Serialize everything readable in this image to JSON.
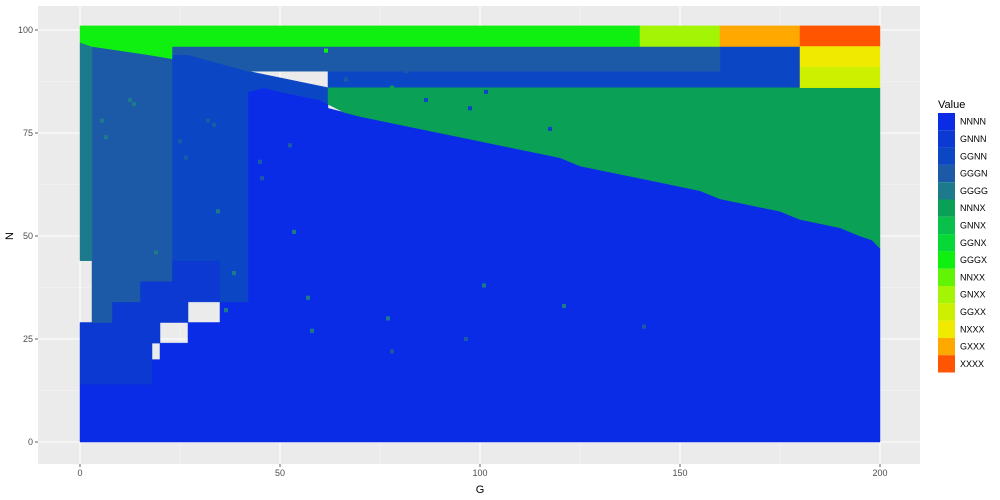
{
  "chart_data": {
    "type": "heatmap",
    "title": "",
    "xlabel": "G",
    "ylabel": "N",
    "xlim": [
      0,
      200
    ],
    "ylim": [
      0,
      100
    ],
    "x_ticks": [
      0,
      50,
      100,
      150,
      200
    ],
    "y_ticks": [
      0,
      25,
      50,
      75,
      100
    ],
    "grid": true,
    "legend_position": "right",
    "legend": {
      "title": "Value",
      "categories": [
        "NNNN",
        "GNNN",
        "GGNN",
        "GGGN",
        "GGGG",
        "NNNX",
        "GNNX",
        "GGNX",
        "GGGX",
        "NNXX",
        "GNXX",
        "GGXX",
        "NXXX",
        "GXXX",
        "XXXX"
      ],
      "colors": [
        "#0a2ce6",
        "#0b39d1",
        "#0b46c4",
        "#1c5aa8",
        "#1c7a8c",
        "#0aa055",
        "#08c04a",
        "#06d838",
        "#10f010",
        "#62f406",
        "#a4f405",
        "#ccf000",
        "#f0ea00",
        "#ffa800",
        "#ff5500"
      ]
    },
    "regions": [
      {
        "value": "NNNN",
        "polygon": [
          [
            0,
            0
          ],
          [
            0,
            14
          ],
          [
            18,
            14
          ],
          [
            18,
            20
          ],
          [
            20,
            20
          ],
          [
            20,
            24
          ],
          [
            27,
            24
          ],
          [
            27,
            29
          ],
          [
            35,
            29
          ],
          [
            35,
            34
          ],
          [
            42,
            34
          ],
          [
            42,
            85
          ],
          [
            46,
            86
          ],
          [
            50,
            85
          ],
          [
            55,
            84
          ],
          [
            60,
            83
          ],
          [
            62,
            82
          ],
          [
            62,
            81
          ],
          [
            66,
            80
          ],
          [
            70,
            79
          ],
          [
            75,
            78
          ],
          [
            80,
            77
          ],
          [
            85,
            76
          ],
          [
            90,
            75
          ],
          [
            95,
            74
          ],
          [
            100,
            73
          ],
          [
            105,
            72
          ],
          [
            110,
            71
          ],
          [
            115,
            70
          ],
          [
            120,
            69
          ],
          [
            125,
            67
          ],
          [
            130,
            66
          ],
          [
            135,
            65
          ],
          [
            140,
            64
          ],
          [
            145,
            63
          ],
          [
            150,
            62
          ],
          [
            155,
            61
          ],
          [
            160,
            59
          ],
          [
            165,
            58
          ],
          [
            170,
            57
          ],
          [
            175,
            56
          ],
          [
            180,
            54
          ],
          [
            185,
            53
          ],
          [
            190,
            52
          ],
          [
            195,
            50
          ],
          [
            198,
            49
          ],
          [
            200,
            47
          ],
          [
            200,
            0
          ]
        ]
      },
      {
        "value": "GNNN",
        "polygon": [
          [
            0,
            14
          ],
          [
            0,
            29
          ],
          [
            8,
            29
          ],
          [
            8,
            34
          ],
          [
            15,
            34
          ],
          [
            15,
            39
          ],
          [
            23,
            39
          ],
          [
            23,
            44
          ],
          [
            35,
            44
          ],
          [
            35,
            34
          ],
          [
            27,
            34
          ],
          [
            27,
            29
          ],
          [
            20,
            29
          ],
          [
            20,
            24
          ],
          [
            18,
            24
          ],
          [
            18,
            14
          ]
        ]
      },
      {
        "value": "GGNN",
        "polygon": [
          [
            23,
            44
          ],
          [
            23,
            94
          ],
          [
            27,
            94
          ],
          [
            42,
            90
          ],
          [
            62,
            86
          ],
          [
            62,
            90
          ],
          [
            180,
            90
          ],
          [
            180,
            86
          ],
          [
            62,
            86
          ],
          [
            62,
            82
          ],
          [
            60,
            83
          ],
          [
            55,
            84
          ],
          [
            50,
            85
          ],
          [
            46,
            86
          ],
          [
            42,
            85
          ],
          [
            42,
            34
          ],
          [
            35,
            34
          ],
          [
            35,
            44
          ]
        ]
      },
      {
        "value": "GGNN",
        "polygon": [
          [
            160,
            96
          ],
          [
            180,
            96
          ],
          [
            180,
            86
          ],
          [
            160,
            86
          ]
        ]
      },
      {
        "value": "GGGN",
        "polygon": [
          [
            3,
            29
          ],
          [
            3,
            96
          ],
          [
            10,
            95
          ],
          [
            17,
            94
          ],
          [
            23,
            93
          ],
          [
            23,
            96
          ],
          [
            160,
            96
          ],
          [
            160,
            90
          ],
          [
            62,
            90
          ],
          [
            42,
            90
          ],
          [
            27,
            94
          ],
          [
            23,
            94
          ],
          [
            23,
            39
          ],
          [
            15,
            39
          ],
          [
            15,
            34
          ],
          [
            8,
            34
          ],
          [
            8,
            29
          ]
        ]
      },
      {
        "value": "GGGG",
        "polygon": [
          [
            0,
            44
          ],
          [
            0,
            97
          ],
          [
            3,
            96
          ],
          [
            3,
            44
          ]
        ]
      },
      {
        "value": "NNNX",
        "polygon": [
          [
            62,
            86
          ],
          [
            62,
            82
          ],
          [
            66,
            80
          ],
          [
            70,
            79
          ],
          [
            75,
            78
          ],
          [
            80,
            77
          ],
          [
            85,
            76
          ],
          [
            90,
            75
          ],
          [
            95,
            74
          ],
          [
            100,
            73
          ],
          [
            105,
            72
          ],
          [
            110,
            71
          ],
          [
            115,
            70
          ],
          [
            120,
            69
          ],
          [
            125,
            67
          ],
          [
            130,
            66
          ],
          [
            135,
            65
          ],
          [
            140,
            64
          ],
          [
            145,
            63
          ],
          [
            150,
            62
          ],
          [
            155,
            61
          ],
          [
            160,
            59
          ],
          [
            165,
            58
          ],
          [
            170,
            57
          ],
          [
            175,
            56
          ],
          [
            180,
            54
          ],
          [
            185,
            53
          ],
          [
            190,
            52
          ],
          [
            195,
            50
          ],
          [
            198,
            49
          ],
          [
            200,
            47
          ],
          [
            200,
            86
          ]
        ]
      },
      {
        "value": "GGGX",
        "polygon": [
          [
            0,
            97
          ],
          [
            0,
            101
          ],
          [
            140,
            101
          ],
          [
            140,
            96
          ],
          [
            23,
            96
          ],
          [
            23,
            93
          ],
          [
            17,
            94
          ],
          [
            10,
            95
          ],
          [
            3,
            96
          ]
        ]
      },
      {
        "value": "GNXX",
        "polygon": [
          [
            140,
            96
          ],
          [
            140,
            101
          ],
          [
            160,
            101
          ],
          [
            160,
            96
          ]
        ]
      },
      {
        "value": "GXXX",
        "polygon": [
          [
            160,
            96
          ],
          [
            160,
            101
          ],
          [
            180,
            101
          ],
          [
            180,
            96
          ]
        ]
      },
      {
        "value": "XXXX",
        "polygon": [
          [
            180,
            96
          ],
          [
            180,
            101
          ],
          [
            200,
            101
          ],
          [
            200,
            96
          ]
        ]
      },
      {
        "value": "NXXX",
        "polygon": [
          [
            180,
            91
          ],
          [
            180,
            96
          ],
          [
            200,
            96
          ],
          [
            200,
            91
          ]
        ]
      },
      {
        "value": "GGXX",
        "polygon": [
          [
            180,
            86
          ],
          [
            180,
            91
          ],
          [
            200,
            91
          ],
          [
            200,
            86
          ]
        ]
      }
    ],
    "points": [
      {
        "x": 61.5,
        "y": 95,
        "value": "GGGX"
      },
      {
        "x": 46.5,
        "y": 93,
        "value": "GGGN"
      },
      {
        "x": 78,
        "y": 86,
        "value": "NNNX"
      },
      {
        "x": 86.5,
        "y": 83,
        "value": "GGNN"
      },
      {
        "x": 101.5,
        "y": 85,
        "value": "GGNN"
      },
      {
        "x": 97.5,
        "y": 81,
        "value": "GGNN"
      },
      {
        "x": 117.5,
        "y": 76,
        "value": "GGNN"
      },
      {
        "x": 81.5,
        "y": 90,
        "value": "GGGN"
      },
      {
        "x": 66.5,
        "y": 88,
        "value": "GGGN"
      },
      {
        "x": 12.5,
        "y": 83,
        "value": "GGGG"
      },
      {
        "x": 13.5,
        "y": 82,
        "value": "GGGG"
      },
      {
        "x": 5.5,
        "y": 78,
        "value": "GGGG"
      },
      {
        "x": 6.5,
        "y": 74,
        "value": "GGGG"
      },
      {
        "x": 32,
        "y": 78,
        "value": "GGGN"
      },
      {
        "x": 33.5,
        "y": 77,
        "value": "GGGN"
      },
      {
        "x": 25,
        "y": 73,
        "value": "GGGN"
      },
      {
        "x": 26.5,
        "y": 69,
        "value": "GGGN"
      },
      {
        "x": 34.5,
        "y": 56,
        "value": "GGGG"
      },
      {
        "x": 52.5,
        "y": 72,
        "value": "GGGN"
      },
      {
        "x": 45,
        "y": 68,
        "value": "GGGN"
      },
      {
        "x": 45.5,
        "y": 64,
        "value": "GGGN"
      },
      {
        "x": 53.5,
        "y": 51,
        "value": "GGGG"
      },
      {
        "x": 19,
        "y": 46,
        "value": "GGGG"
      },
      {
        "x": 38.5,
        "y": 41,
        "value": "GGGG"
      },
      {
        "x": 36.5,
        "y": 32,
        "value": "GGGG"
      },
      {
        "x": 57,
        "y": 35,
        "value": "GGGG"
      },
      {
        "x": 58,
        "y": 27,
        "value": "GGGG"
      },
      {
        "x": 77,
        "y": 30,
        "value": "GGGG"
      },
      {
        "x": 101,
        "y": 38,
        "value": "GGGG"
      },
      {
        "x": 121,
        "y": 33,
        "value": "GGGG"
      },
      {
        "x": 141,
        "y": 28,
        "value": "GGGN"
      },
      {
        "x": 96.5,
        "y": 25,
        "value": "GGGN"
      },
      {
        "x": 78,
        "y": 22,
        "value": "GGGN"
      }
    ]
  }
}
